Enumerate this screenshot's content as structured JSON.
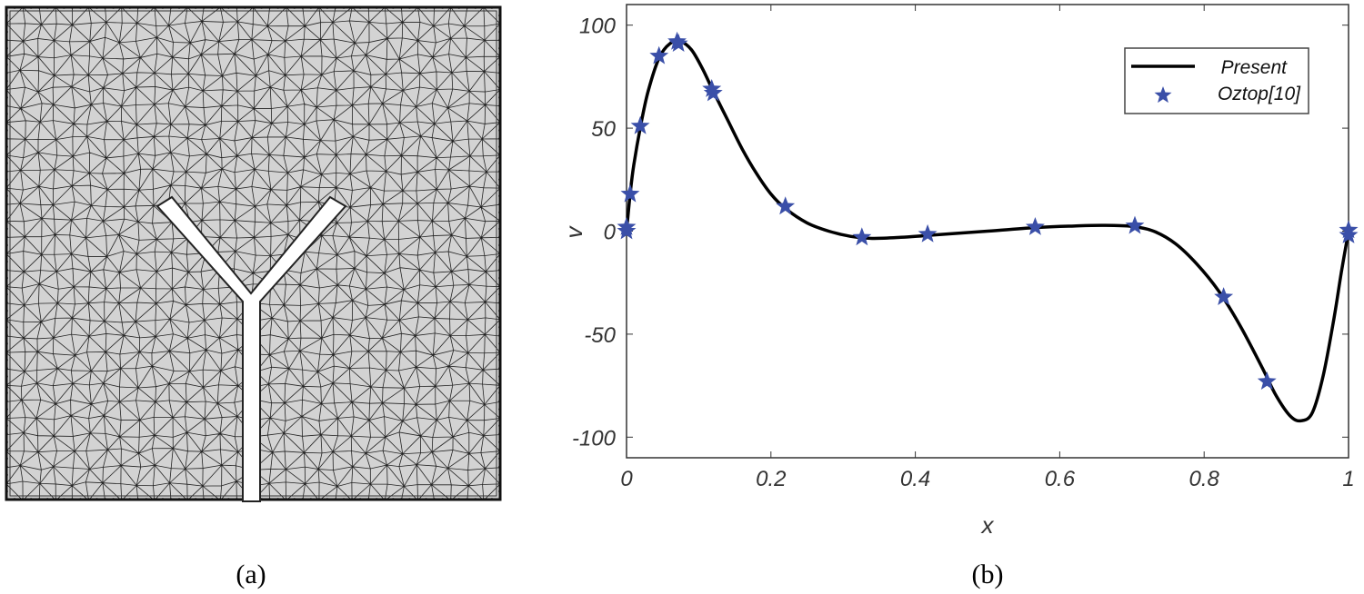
{
  "panels": {
    "a": {
      "caption": "(a)"
    },
    "b": {
      "caption": "(b)"
    }
  },
  "colors": {
    "mesh_fill": "#d3d3d3",
    "mesh_line": "#222222",
    "marker": "#3a4fa8",
    "line": "#000000"
  },
  "chart_data": {
    "type": "line",
    "xlabel": "x",
    "ylabel": "v",
    "xlim": [
      0,
      1
    ],
    "ylim": [
      -110,
      110
    ],
    "xticks": [
      0,
      0.2,
      0.4,
      0.6,
      0.8,
      1
    ],
    "xtick_labels": [
      "0",
      "0.2",
      "0.4",
      "0.6",
      "0.8",
      "1"
    ],
    "yticks": [
      100,
      50,
      0,
      -50,
      -100
    ],
    "ytick_labels": [
      "100",
      "50",
      "0",
      "-50",
      "-100"
    ],
    "grid": false,
    "legend_position": "top-right",
    "series": [
      {
        "name": "Present",
        "style": "line",
        "x": [
          0,
          0.005,
          0.01,
          0.02,
          0.03,
          0.045,
          0.06,
          0.075,
          0.09,
          0.105,
          0.12,
          0.14,
          0.16,
          0.18,
          0.2,
          0.22,
          0.25,
          0.28,
          0.31,
          0.34,
          0.38,
          0.42,
          0.5,
          0.57,
          0.62,
          0.66,
          0.7,
          0.73,
          0.76,
          0.79,
          0.82,
          0.85,
          0.88,
          0.9,
          0.92,
          0.935,
          0.95,
          0.965,
          0.98,
          0.99,
          1
        ],
        "y": [
          0,
          18,
          32,
          52,
          68,
          84,
          91,
          92,
          88,
          79,
          68,
          54,
          40,
          28,
          18,
          11,
          4,
          0,
          -2.5,
          -3.5,
          -3,
          -2,
          0,
          1.8,
          2.5,
          2.8,
          2.3,
          0,
          -6,
          -16,
          -29,
          -46,
          -66,
          -80,
          -90,
          -92,
          -88,
          -70,
          -42,
          -20,
          0
        ]
      },
      {
        "name": "Oztop[10]",
        "style": "star-marker",
        "x": [
          0,
          0,
          0.005,
          0.019,
          0.045,
          0.07,
          0.072,
          0.118,
          0.12,
          0.22,
          0.326,
          0.417,
          0.566,
          0.704,
          0.827,
          0.887,
          1,
          1
        ],
        "y": [
          0,
          2,
          18,
          51,
          85,
          92,
          91,
          69,
          67,
          12,
          -3,
          -1.5,
          2,
          2.6,
          -32,
          -73,
          0.5,
          -2
        ]
      }
    ]
  }
}
